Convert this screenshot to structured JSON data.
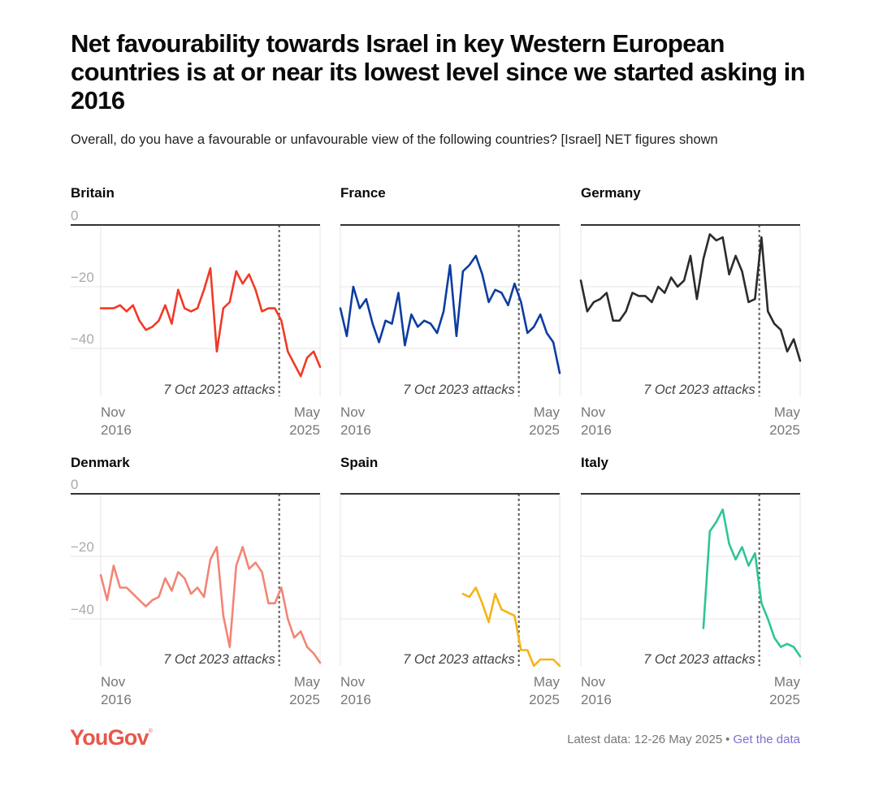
{
  "header": {
    "title": "Net favourability towards Israel in key Western European countries is at or near its lowest level since we started asking in 2016",
    "subtitle": "Overall, do you have a favourable or unfavourable view of the following countries? [Israel] NET figures shown"
  },
  "footer": {
    "logo": "YouGov",
    "logo_mark": "®",
    "latest_data": "Latest data: 12-26 May 2025",
    "separator": "•",
    "link": "Get the data"
  },
  "colors": {
    "Britain": "#f03a26",
    "France": "#0c3da0",
    "Germany": "#2b2b2b",
    "Denmark": "#f28576",
    "Spain": "#f5b416",
    "Italy": "#2dc598",
    "link": "#7b6fd0",
    "logo": "#e8574a"
  },
  "chart_data": {
    "type": "line",
    "layout": "small-multiples 2x3",
    "y_ticks": [
      0,
      -20,
      -40
    ],
    "ylim": [
      -56,
      0
    ],
    "x_start": "2016-11",
    "x_end": "2025-05",
    "x_tick_labels": [
      [
        "Nov",
        "2016"
      ],
      [
        "May",
        "2025"
      ]
    ],
    "annotation": {
      "date": "2023-10",
      "label": "7 Oct 2023 attacks"
    },
    "x_unit": "months since Nov 2016",
    "panels": [
      {
        "name": "Britain",
        "show_y_labels": true,
        "x": [
          0,
          3,
          6,
          9,
          12,
          15,
          18,
          21,
          24,
          27,
          30,
          33,
          36,
          39,
          42,
          45,
          48,
          51,
          54,
          57,
          60,
          63,
          66,
          69,
          72,
          75,
          78,
          81,
          84,
          87,
          90,
          93,
          96,
          99,
          102
        ],
        "values": [
          -27,
          -27,
          -27,
          -26,
          -28,
          -26,
          -31,
          -34,
          -33,
          -31,
          -26,
          -32,
          -21,
          -27,
          -28,
          -27,
          -21,
          -14,
          -41,
          -27,
          -25,
          -15,
          -19,
          -16,
          -21,
          -28,
          -27,
          -27,
          -31,
          -41,
          -45,
          -49,
          -43,
          -41,
          -46
        ]
      },
      {
        "name": "France",
        "show_y_labels": false,
        "x": [
          0,
          3,
          6,
          9,
          12,
          15,
          18,
          21,
          24,
          27,
          30,
          33,
          36,
          39,
          42,
          45,
          48,
          51,
          54,
          57,
          60,
          63,
          66,
          69,
          72,
          75,
          78,
          81,
          84,
          87,
          90,
          93,
          96,
          99,
          102
        ],
        "values": [
          -27,
          -36,
          -20,
          -27,
          -24,
          -32,
          -38,
          -31,
          -32,
          -22,
          -39,
          -29,
          -33,
          -31,
          -32,
          -35,
          -28,
          -13,
          -36,
          -15,
          -13,
          -10,
          -16,
          -25,
          -21,
          -22,
          -26,
          -19,
          -25,
          -35,
          -33,
          -29,
          -35,
          -38,
          -48
        ]
      },
      {
        "name": "Germany",
        "show_y_labels": false,
        "x": [
          0,
          3,
          6,
          9,
          12,
          15,
          18,
          21,
          24,
          27,
          30,
          33,
          36,
          39,
          42,
          45,
          48,
          51,
          54,
          57,
          60,
          63,
          66,
          69,
          72,
          75,
          78,
          81,
          84,
          87,
          90,
          93,
          96,
          99,
          102
        ],
        "values": [
          -18,
          -28,
          -25,
          -24,
          -22,
          -31,
          -31,
          -28,
          -22,
          -23,
          -23,
          -25,
          -20,
          -22,
          -17,
          -20,
          -18,
          -10,
          -24,
          -11,
          -3,
          -5,
          -4,
          -16,
          -10,
          -15,
          -25,
          -24,
          -4,
          -28,
          -32,
          -34,
          -41,
          -37,
          -44
        ]
      },
      {
        "name": "Denmark",
        "show_y_labels": true,
        "x": [
          0,
          3,
          6,
          9,
          12,
          15,
          18,
          21,
          24,
          27,
          30,
          33,
          36,
          39,
          42,
          45,
          48,
          51,
          54,
          57,
          60,
          63,
          66,
          69,
          72,
          75,
          78,
          81,
          84,
          87,
          90,
          93,
          96,
          99,
          102
        ],
        "values": [
          -26,
          -34,
          -23,
          -30,
          -30,
          -32,
          -34,
          -36,
          -34,
          -33,
          -27,
          -31,
          -25,
          -27,
          -32,
          -30,
          -33,
          -21,
          -17,
          -39,
          -49,
          -23,
          -17,
          -24,
          -22,
          -25,
          -35,
          -35,
          -30,
          -40,
          -46,
          -44,
          -49,
          -51,
          -54
        ]
      },
      {
        "name": "Spain",
        "show_y_labels": false,
        "x": [
          57,
          60,
          63,
          66,
          69,
          72,
          75,
          78,
          81,
          84,
          87,
          90,
          93,
          96,
          99,
          102
        ],
        "values": [
          -32,
          -33,
          -30,
          -35,
          -41,
          -32,
          -37,
          -38,
          -39,
          -50,
          -50,
          -55,
          -53,
          -53,
          -53,
          -55
        ]
      },
      {
        "name": "Italy",
        "show_y_labels": false,
        "x": [
          57,
          60,
          63,
          66,
          69,
          72,
          75,
          78,
          81,
          84,
          87,
          90,
          93,
          96,
          99,
          102
        ],
        "values": [
          -43,
          -12,
          -9,
          -5,
          -16,
          -21,
          -17,
          -23,
          -19,
          -35,
          -40,
          -46,
          -49,
          -48,
          -49,
          -52
        ]
      }
    ]
  }
}
